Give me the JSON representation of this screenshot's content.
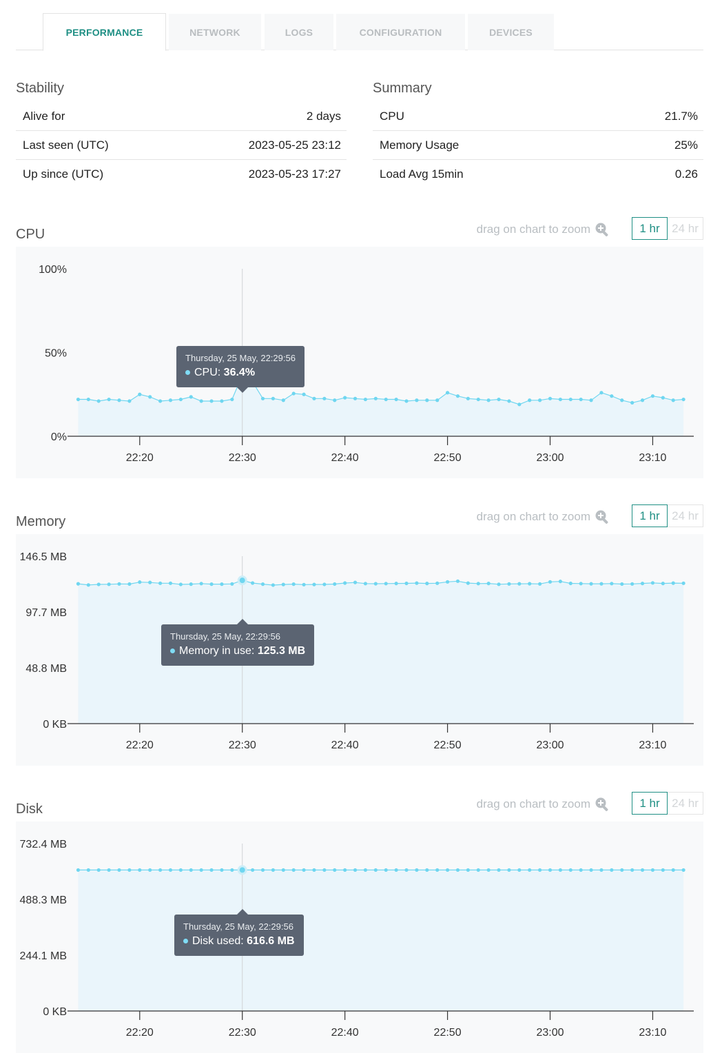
{
  "tabs": [
    {
      "label": "PERFORMANCE",
      "active": true
    },
    {
      "label": "NETWORK",
      "active": false
    },
    {
      "label": "LOGS",
      "active": false
    },
    {
      "label": "CONFIGURATION",
      "active": false
    },
    {
      "label": "DEVICES",
      "active": false
    }
  ],
  "stability": {
    "title": "Stability",
    "rows": [
      {
        "label": "Alive for",
        "value": "2 days"
      },
      {
        "label": "Last seen (UTC)",
        "value": "2023-05-25 23:12"
      },
      {
        "label": "Up since (UTC)",
        "value": "2023-05-23 17:27"
      }
    ]
  },
  "summary": {
    "title": "Summary",
    "rows": [
      {
        "label": "CPU",
        "value": "21.7%"
      },
      {
        "label": "Memory Usage",
        "value": "25%"
      },
      {
        "label": "Load Avg 15min",
        "value": "0.26"
      }
    ]
  },
  "zoom_hint": "drag on chart to zoom",
  "zoom_icon": "zoom-in-icon",
  "range_buttons": [
    "1 hr",
    "24 hr"
  ],
  "active_range": "1 hr",
  "colors": {
    "accent": "#1f8f84",
    "series": "#6fd6f0",
    "tooltip_bg": "#5b6472"
  },
  "charts": [
    {
      "title": "CPU",
      "tooltip": {
        "date": "Thursday, 25 May, 22:29:56",
        "series": "CPU",
        "value": "36.4%"
      },
      "y_tick_labels": [
        "100%",
        "50%",
        "0%"
      ],
      "x_tick_labels": [
        "22:20",
        "22:30",
        "22:40",
        "22:50",
        "23:00",
        "23:10"
      ]
    },
    {
      "title": "Memory",
      "tooltip": {
        "date": "Thursday, 25 May, 22:29:56",
        "series": "Memory in use",
        "value": "125.3 MB"
      },
      "y_tick_labels": [
        "146.5 MB",
        "97.7 MB",
        "48.8 MB",
        "0 KB"
      ],
      "x_tick_labels": [
        "22:20",
        "22:30",
        "22:40",
        "22:50",
        "23:00",
        "23:10"
      ]
    },
    {
      "title": "Disk",
      "tooltip": {
        "date": "Thursday, 25 May, 22:29:56",
        "series": "Disk used",
        "value": "616.6 MB"
      },
      "y_tick_labels": [
        "732.4 MB",
        "488.3 MB",
        "244.1 MB",
        "0 KB"
      ],
      "x_tick_labels": [
        "22:20",
        "22:30",
        "22:40",
        "22:50",
        "23:00",
        "23:10"
      ]
    }
  ],
  "chart_data": [
    {
      "type": "area",
      "title": "CPU",
      "xlabel": "",
      "ylabel": "",
      "x_unit": "minutes since 22:00",
      "x": [
        14,
        15,
        16,
        17,
        18,
        19,
        20,
        21,
        22,
        23,
        24,
        25,
        26,
        27,
        28,
        29,
        30,
        31,
        32,
        33,
        34,
        35,
        36,
        37,
        38,
        39,
        40,
        41,
        42,
        43,
        44,
        45,
        46,
        47,
        48,
        49,
        50,
        51,
        52,
        53,
        54,
        55,
        56,
        57,
        58,
        59,
        60,
        61,
        62,
        63,
        64,
        65,
        66,
        67,
        68,
        69,
        70,
        71,
        72,
        73
      ],
      "xlim": [
        13.5,
        74
      ],
      "x_ticks": [
        20,
        30,
        40,
        50,
        60,
        70
      ],
      "x_tick_labels": [
        "22:20",
        "22:30",
        "22:40",
        "22:50",
        "23:00",
        "23:10"
      ],
      "y_unit": "%",
      "ylim": [
        0,
        100
      ],
      "y_ticks": [
        100,
        50,
        0
      ],
      "y_tick_labels": [
        "100%",
        "50%",
        "0%"
      ],
      "series": [
        {
          "name": "CPU",
          "values": [
            22,
            22,
            21,
            22,
            21.5,
            21,
            25,
            23.5,
            21,
            21.5,
            22,
            23.5,
            21,
            21,
            21,
            22,
            36.4,
            32.5,
            22.5,
            22.5,
            21.5,
            25.5,
            25,
            22.5,
            22.5,
            21.5,
            23,
            22.5,
            22,
            22.5,
            22,
            22,
            21,
            21.5,
            21.5,
            21.5,
            26,
            24,
            22.5,
            22,
            21.5,
            22,
            21,
            19,
            21.5,
            21.5,
            22.5,
            22,
            22,
            22,
            21.5,
            26,
            24,
            21.5,
            20,
            21.5,
            24,
            23,
            21.5,
            22
          ]
        }
      ],
      "grid": false,
      "legend": "none",
      "tooltip_index": 16
    },
    {
      "type": "area",
      "title": "Memory",
      "xlabel": "",
      "ylabel": "",
      "x_unit": "minutes since 22:00",
      "x": [
        14,
        15,
        16,
        17,
        18,
        19,
        20,
        21,
        22,
        23,
        24,
        25,
        26,
        27,
        28,
        29,
        30,
        31,
        32,
        33,
        34,
        35,
        36,
        37,
        38,
        39,
        40,
        41,
        42,
        43,
        44,
        45,
        46,
        47,
        48,
        49,
        50,
        51,
        52,
        53,
        54,
        55,
        56,
        57,
        58,
        59,
        60,
        61,
        62,
        63,
        64,
        65,
        66,
        67,
        68,
        69,
        70,
        71,
        72,
        73
      ],
      "xlim": [
        13.5,
        74
      ],
      "x_ticks": [
        20,
        30,
        40,
        50,
        60,
        70
      ],
      "x_tick_labels": [
        "22:20",
        "22:30",
        "22:40",
        "22:50",
        "23:00",
        "23:10"
      ],
      "y_unit": "MB",
      "ylim": [
        0,
        146.5
      ],
      "y_ticks": [
        146.5,
        97.7,
        48.8,
        0
      ],
      "y_tick_labels": [
        "146.5 MB",
        "97.7 MB",
        "48.8 MB",
        "0 KB"
      ],
      "series": [
        {
          "name": "Memory in use",
          "values": [
            122.3,
            121.3,
            121.8,
            121.9,
            122.2,
            122.1,
            123.8,
            123.5,
            122.8,
            122.8,
            121.8,
            122,
            122.5,
            122,
            122,
            122.2,
            125.3,
            123,
            122,
            121.2,
            121.7,
            122,
            121.6,
            121.7,
            121.8,
            122.1,
            123,
            123.5,
            122.5,
            122.4,
            122.5,
            122.6,
            122.7,
            122.9,
            122.6,
            122.8,
            124,
            124.6,
            122.9,
            122.5,
            122.6,
            121.9,
            122.2,
            122.3,
            122.4,
            122.2,
            124,
            124.4,
            122.7,
            122.5,
            122.3,
            122.3,
            122.5,
            122.1,
            122.2,
            122.6,
            123.1,
            122.6,
            122.9,
            122.8
          ]
        }
      ],
      "grid": false,
      "legend": "none",
      "tooltip_index": 16
    },
    {
      "type": "area",
      "title": "Disk",
      "xlabel": "",
      "ylabel": "",
      "x_unit": "minutes since 22:00",
      "x": [
        14,
        15,
        16,
        17,
        18,
        19,
        20,
        21,
        22,
        23,
        24,
        25,
        26,
        27,
        28,
        29,
        30,
        31,
        32,
        33,
        34,
        35,
        36,
        37,
        38,
        39,
        40,
        41,
        42,
        43,
        44,
        45,
        46,
        47,
        48,
        49,
        50,
        51,
        52,
        53,
        54,
        55,
        56,
        57,
        58,
        59,
        60,
        61,
        62,
        63,
        64,
        65,
        66,
        67,
        68,
        69,
        70,
        71,
        72,
        73
      ],
      "xlim": [
        13.5,
        74
      ],
      "x_ticks": [
        20,
        30,
        40,
        50,
        60,
        70
      ],
      "x_tick_labels": [
        "22:20",
        "22:30",
        "22:40",
        "22:50",
        "23:00",
        "23:10"
      ],
      "y_unit": "MB",
      "ylim": [
        0,
        732.4
      ],
      "y_ticks": [
        732.4,
        488.3,
        244.1,
        0
      ],
      "y_tick_labels": [
        "732.4 MB",
        "488.3 MB",
        "244.1 MB",
        "0 KB"
      ],
      "series": [
        {
          "name": "Disk used",
          "values": [
            616.6,
            616.6,
            616.6,
            616.6,
            616.6,
            616.6,
            616.6,
            616.6,
            616.6,
            616.6,
            616.6,
            616.6,
            616.6,
            616.6,
            616.6,
            616.6,
            616.6,
            616.6,
            616.6,
            616.6,
            616.6,
            616.6,
            616.6,
            616.6,
            616.6,
            616.6,
            616.6,
            616.6,
            616.6,
            616.6,
            616.6,
            616.6,
            616.6,
            616.6,
            616.6,
            616.6,
            616.6,
            616.6,
            616.6,
            616.6,
            616.6,
            616.6,
            616.6,
            616.6,
            616.6,
            616.6,
            616.6,
            616.6,
            616.6,
            616.6,
            616.6,
            616.6,
            616.6,
            616.6,
            616.6,
            616.6,
            616.6,
            616.6,
            616.6,
            616.6
          ]
        }
      ],
      "grid": false,
      "legend": "none",
      "tooltip_index": 16
    }
  ]
}
